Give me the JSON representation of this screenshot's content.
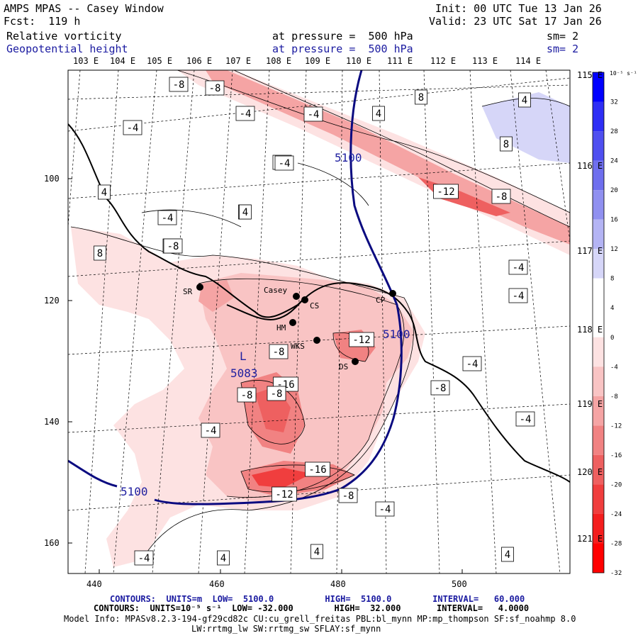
{
  "header": {
    "title": "AMPS MPAS -- Casey Window",
    "init": "Init: 00 UTC Tue 13 Jan 26",
    "fcst": "Fcst:  119 h",
    "valid": "Valid: 23 UTC Sat 17 Jan 26",
    "field1_name": "Relative vorticity",
    "field1_level": "at pressure =  500 hPa",
    "field1_sm": "sm= 2",
    "field2_name": "Geopotential height",
    "field2_level": "at pressure =  500 hPa",
    "field2_sm": "sm= 2"
  },
  "lon_labels_top": [
    "103 E",
    "104 E",
    "105 E",
    "106 E",
    "107 E",
    "108 E",
    "109 E",
    "110 E",
    "111 E",
    "112 E",
    "113 E",
    "114 E"
  ],
  "lon_labels_right": [
    "115 E",
    "116 E",
    "117 E",
    "118 E",
    "119 E",
    "120 E",
    "121 E"
  ],
  "x_ticks": [
    "440",
    "460",
    "480",
    "500"
  ],
  "y_ticks": [
    "100",
    "120",
    "140",
    "160"
  ],
  "colorbar": {
    "unit": "10⁻⁵ s⁻¹",
    "labels": [
      "32",
      "28",
      "24",
      "20",
      "16",
      "12",
      "8",
      "4",
      "0",
      "-4",
      "-8",
      "-12",
      "-16",
      "-20",
      "-24",
      "-28",
      "-32"
    ],
    "colors": [
      "#0000ff",
      "#2e2ef5",
      "#4f4ff0",
      "#6f6fee",
      "#9090f0",
      "#b4b4f4",
      "#d6d6f8",
      "#ffffff",
      "#ffffff",
      "#fde2e2",
      "#f9c4c4",
      "#f5a4a4",
      "#f18282",
      "#ee6060",
      "#f03e3e",
      "#f41e1e",
      "#ff0000"
    ]
  },
  "stations": [
    {
      "name": "SR"
    },
    {
      "name": "Casey"
    },
    {
      "name": "CS"
    },
    {
      "name": "HM"
    },
    {
      "name": "WKS"
    },
    {
      "name": "DS"
    },
    {
      "name": "CP"
    }
  ],
  "contour_labels": [
    "-8",
    "-8",
    "8",
    "4",
    "-4",
    "-4",
    "4",
    "-4",
    "-4",
    "8",
    "-4",
    "-4",
    "4",
    "-12",
    "-8",
    "-4",
    "4",
    "8",
    "-4",
    "-8",
    "-4",
    "-8",
    "-12",
    "-4",
    "-8",
    "-16",
    "-8",
    "-4",
    "-8",
    "-4",
    "-16",
    "4",
    "-12",
    "-8",
    "-4",
    "4",
    "-4",
    "4",
    "4"
  ],
  "height_labels": [
    "5100",
    "5100",
    "5100",
    "L",
    "5083"
  ],
  "footer": {
    "line1": "CONTOURS:  UNITS=m  LOW=  5100.0          HIGH=  5100.0        INTERVAL=   60.000",
    "line2": "CONTOURS:  UNITS=10⁻⁵ s⁻¹  LOW= -32.000        HIGH=  32.000       INTERVAL=   4.0000",
    "line3": "Model Info: MPASv8.2.3-194-gf29cd82c CU:cu_grell_freitas PBL:bl_mynn MP:mp_thompson SF:sf_noahmp 8.0",
    "line4": "LW:rrtmg_lw SW:rrtmg_sw SFLAY:sf_mynn"
  }
}
